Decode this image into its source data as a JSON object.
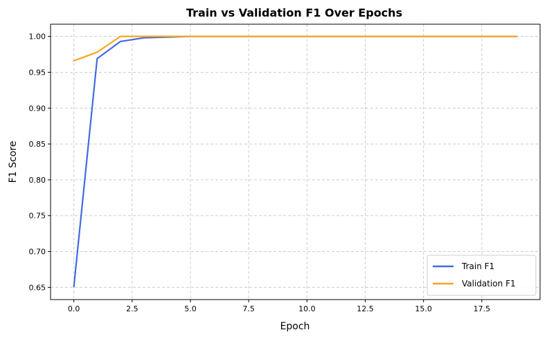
{
  "chart_data": {
    "type": "line",
    "title": "Train vs Validation F1 Over Epochs",
    "xlabel": "Epoch",
    "ylabel": "F1 Score",
    "xlim": [
      -1,
      20
    ],
    "ylim": [
      0.633,
      1.017
    ],
    "xticks": [
      0.0,
      2.5,
      5.0,
      7.5,
      10.0,
      12.5,
      15.0,
      17.5
    ],
    "xtick_labels": [
      "0.0",
      "2.5",
      "5.0",
      "7.5",
      "10.0",
      "12.5",
      "15.0",
      "17.5"
    ],
    "yticks": [
      0.65,
      0.7,
      0.75,
      0.8,
      0.85,
      0.9,
      0.95,
      1.0
    ],
    "ytick_labels": [
      "0.65",
      "0.70",
      "0.75",
      "0.80",
      "0.85",
      "0.90",
      "0.95",
      "1.00"
    ],
    "grid": true,
    "legend_position": "lower-right",
    "x": [
      0,
      1,
      2,
      3,
      4,
      5,
      6,
      7,
      8,
      9,
      10,
      11,
      12,
      13,
      14,
      15,
      16,
      17,
      18,
      19
    ],
    "series": [
      {
        "name": "Train F1",
        "color": "#4169e1",
        "values": [
          0.651,
          0.969,
          0.993,
          0.998,
          0.999,
          1.0,
          1.0,
          1.0,
          1.0,
          1.0,
          1.0,
          1.0,
          1.0,
          1.0,
          1.0,
          1.0,
          1.0,
          1.0,
          1.0,
          1.0
        ]
      },
      {
        "name": "Validation F1",
        "color": "#f5a623",
        "values": [
          0.966,
          0.978,
          1.0,
          1.0,
          1.0,
          1.0,
          1.0,
          1.0,
          1.0,
          1.0,
          1.0,
          1.0,
          1.0,
          1.0,
          1.0,
          1.0,
          1.0,
          1.0,
          1.0,
          1.0
        ]
      }
    ]
  }
}
